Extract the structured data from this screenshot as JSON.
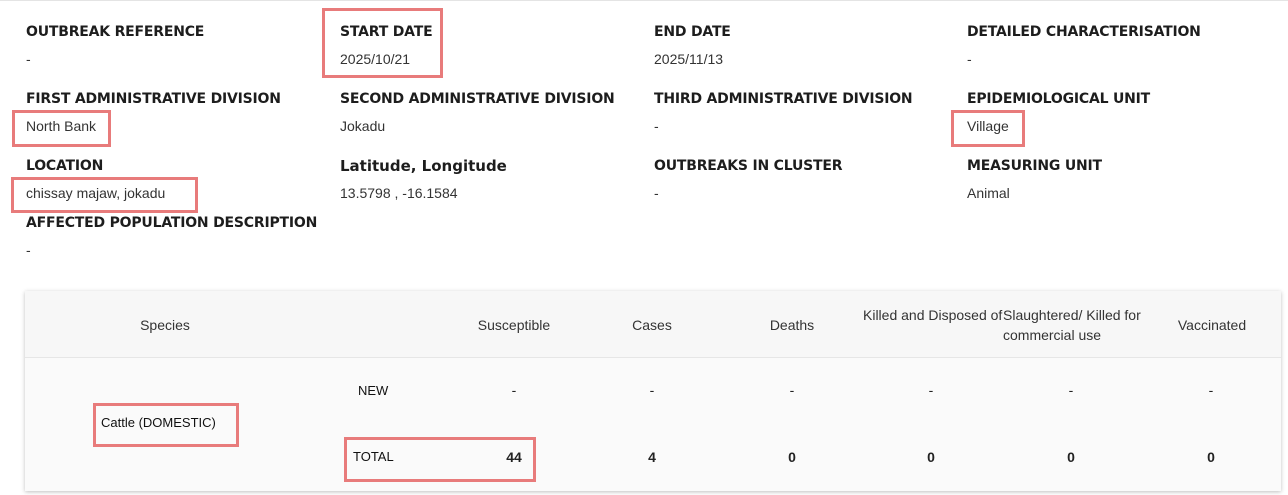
{
  "fields": {
    "outbreak_reference": {
      "label": "OUTBREAK REFERENCE",
      "value": "-"
    },
    "start_date": {
      "label": "START DATE",
      "value": "2025/10/21"
    },
    "end_date": {
      "label": "END DATE",
      "value": "2025/11/13"
    },
    "detailed_characterisation": {
      "label": "DETAILED CHARACTERISATION",
      "value": "-"
    },
    "first_admin_division": {
      "label": "FIRST ADMINISTRATIVE DIVISION",
      "value": "North Bank"
    },
    "second_admin_division": {
      "label": "SECOND ADMINISTRATIVE DIVISION",
      "value": "Jokadu"
    },
    "third_admin_division": {
      "label": "THIRD ADMINISTRATIVE DIVISION",
      "value": "-"
    },
    "epidemiological_unit": {
      "label": "EPIDEMIOLOGICAL UNIT",
      "value": "Village"
    },
    "location": {
      "label": "LOCATION",
      "value": "chissay majaw, jokadu"
    },
    "lat_long": {
      "label": "Latitude, Longitude",
      "value": "13.5798 , -16.1584"
    },
    "outbreaks_in_cluster": {
      "label": "OUTBREAKS IN CLUSTER",
      "value": "-"
    },
    "measuring_unit": {
      "label": "MEASURING UNIT",
      "value": "Animal"
    },
    "affected_population": {
      "label": "AFFECTED POPULATION DESCRIPTION",
      "value": "-"
    }
  },
  "table": {
    "headers": {
      "species": "Species",
      "susceptible": "Susceptible",
      "cases": "Cases",
      "deaths": "Deaths",
      "killed_disposed": "Killed and Disposed of",
      "slaughtered": "Slaughtered/ Killed for commercial use",
      "vaccinated": "Vaccinated"
    },
    "species_name": "Cattle (DOMESTIC)",
    "rows": {
      "new": {
        "label": "NEW",
        "susceptible": "-",
        "cases": "-",
        "deaths": "-",
        "killed_disposed": "-",
        "slaughtered": "-",
        "vaccinated": "-"
      },
      "total": {
        "label": "TOTAL",
        "susceptible": "44",
        "cases": "4",
        "deaths": "0",
        "killed_disposed": "0",
        "slaughtered": "0",
        "vaccinated": "0"
      }
    }
  },
  "colors": {
    "highlight": "#e87b7b",
    "header_bg": "#f7f7f7"
  }
}
